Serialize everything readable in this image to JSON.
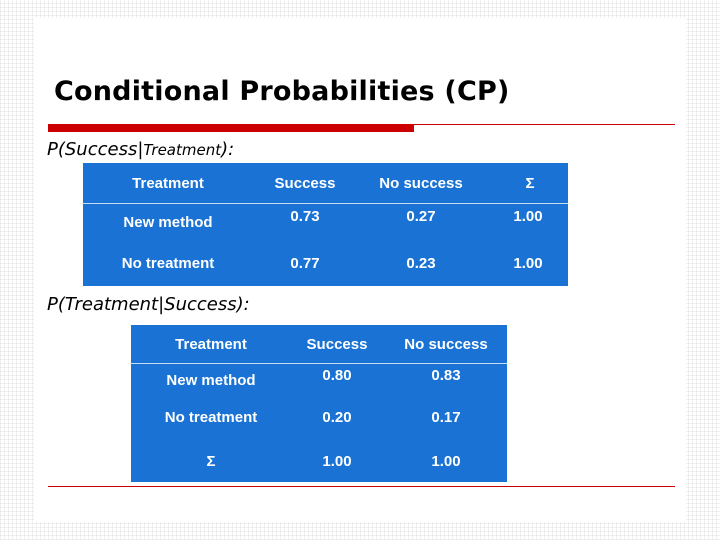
{
  "slide": {
    "title": "Conditional Probabilities (CP)",
    "caption1_prefix": "P(Success|",
    "caption1_mid": "Treatment",
    "caption1_suffix": "):",
    "caption2": "P(Treatment|Success):"
  },
  "table1": {
    "headers": [
      "Treatment",
      "Success",
      "No success",
      "Σ"
    ],
    "rows": [
      [
        "New method",
        "0.73",
        "0.27",
        "1.00"
      ],
      [
        "No treatment",
        "0.77",
        "0.23",
        "1.00"
      ]
    ]
  },
  "table2": {
    "headers": [
      "Treatment",
      "Success",
      "No success"
    ],
    "rows": [
      [
        "New method",
        "0.80",
        "0.83"
      ],
      [
        "No treatment",
        "0.20",
        "0.17"
      ],
      [
        "Σ",
        "1.00",
        "1.00"
      ]
    ]
  },
  "colors": {
    "table_bg": "#1a73d4",
    "accent_red": "#cc0000",
    "text_white": "#ffffff"
  }
}
